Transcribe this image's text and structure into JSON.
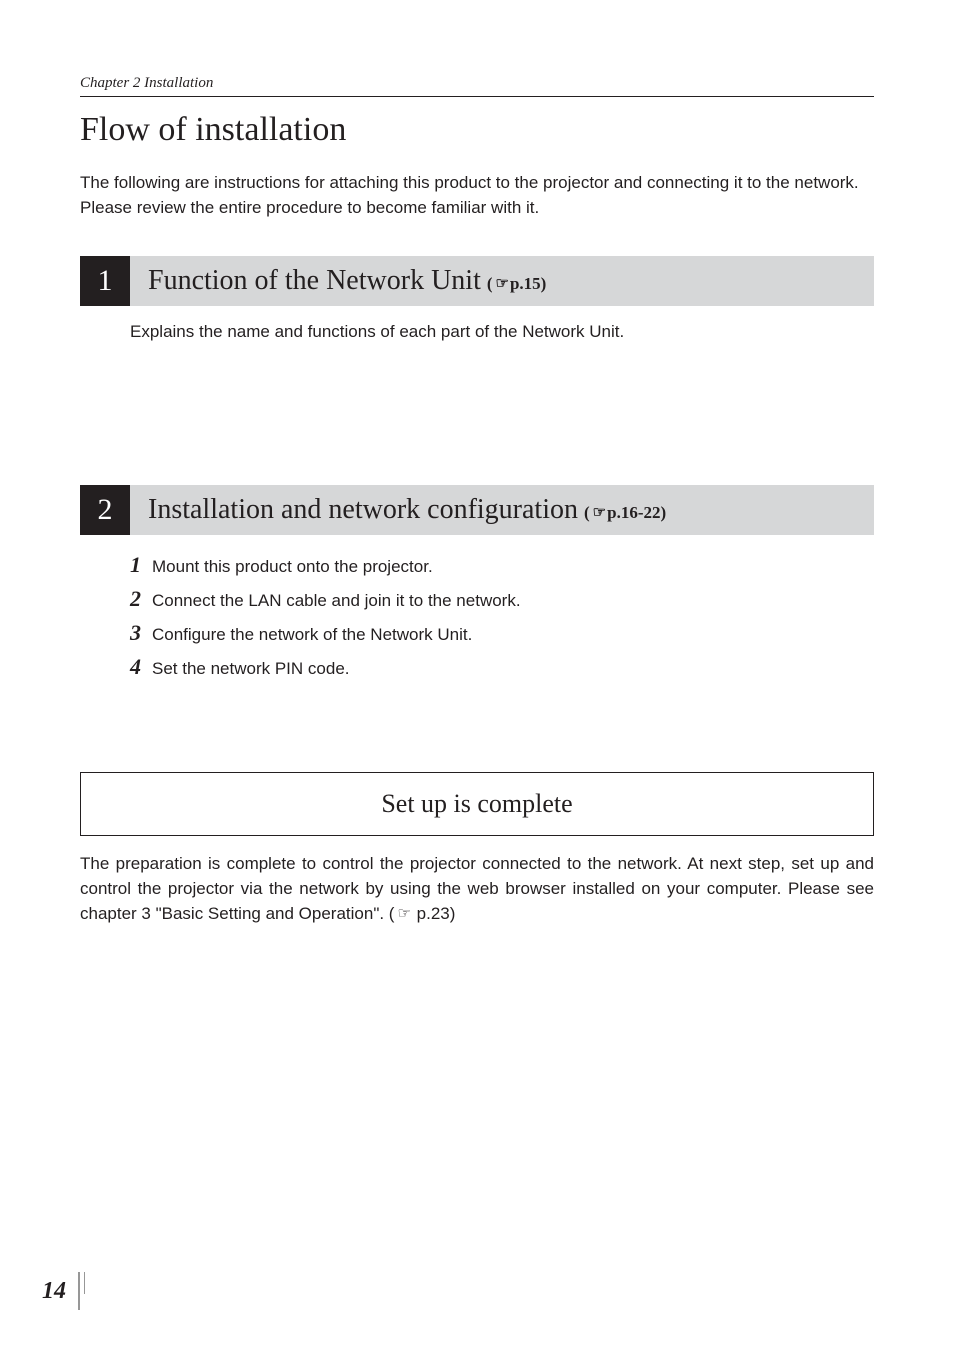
{
  "running_head": "Chapter 2 Installation",
  "main_title": "Flow of installation",
  "intro": "The following are instructions for attaching this product to the projector and connecting it to the network. Please review the entire procedure to become familiar with it.",
  "sections": [
    {
      "num": "1",
      "title": "Function of the Network Unit",
      "ref_open": "(",
      "ref_text": "p.15)",
      "body": "Explains the name and functions of each part of the Network Unit."
    },
    {
      "num": "2",
      "title": "Installation and network configuration",
      "ref_open": "(",
      "ref_text": "p.16-22)",
      "steps": [
        {
          "n": "1",
          "t": "Mount this product onto the projector."
        },
        {
          "n": "2",
          "t": "Connect the LAN cable and join it to the network."
        },
        {
          "n": "3",
          "t": "Configure the network of the Network Unit."
        },
        {
          "n": "4",
          "t": "Set the network PIN code."
        }
      ]
    }
  ],
  "complete_box": "Set up is complete",
  "outro_pre": "The preparation is complete to control the projector connected to the network. At next step, set up and control the projector via the network by using the web browser installed on your computer. Please see chapter 3 \"Basic Setting and Operation\". (",
  "outro_post": " p.23)",
  "page_number": "14",
  "colors": {
    "text": "#231f20",
    "bar_bg": "#d6d7d8",
    "num_bg": "#231f20",
    "tick": "#979797"
  },
  "icon_glyph": "☞"
}
